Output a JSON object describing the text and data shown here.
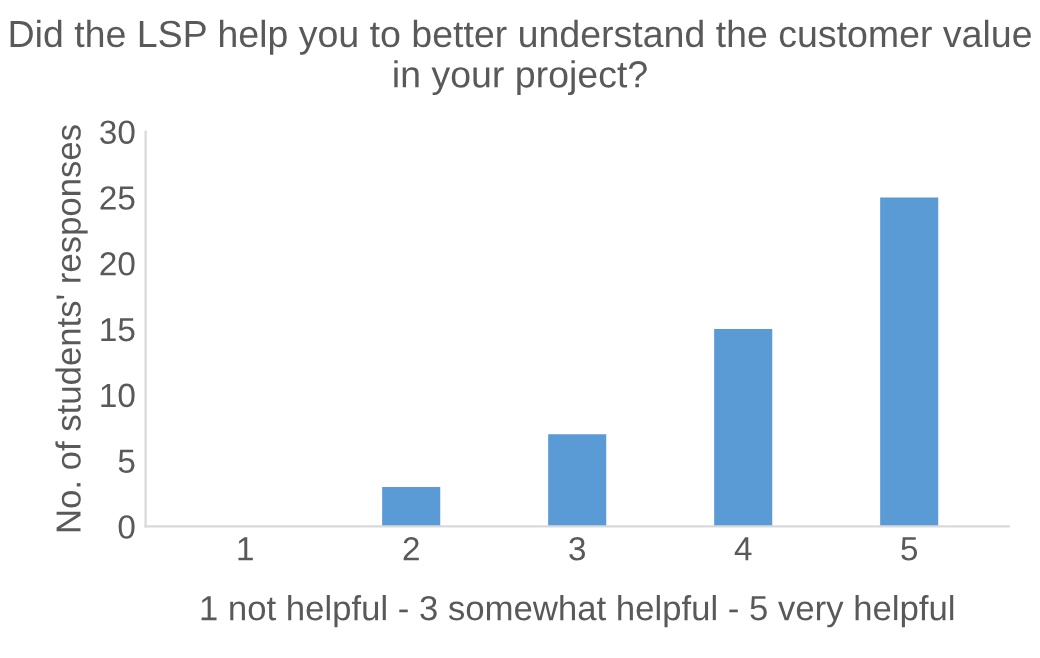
{
  "chart_data": {
    "type": "bar",
    "title": "Did the LSP help you to better understand the customer value in your project?",
    "xlabel": "1 not helpful - 3 somewhat helpful - 5 very helpful",
    "ylabel": "No. of students' responses",
    "categories": [
      "1",
      "2",
      "3",
      "4",
      "5"
    ],
    "values": [
      0,
      3,
      7,
      15,
      25
    ],
    "color": "#5b9bd5",
    "ylim": [
      0,
      30
    ],
    "yticks": [
      0,
      5,
      10,
      15,
      20,
      25,
      30
    ],
    "grid": false,
    "legend": false
  }
}
